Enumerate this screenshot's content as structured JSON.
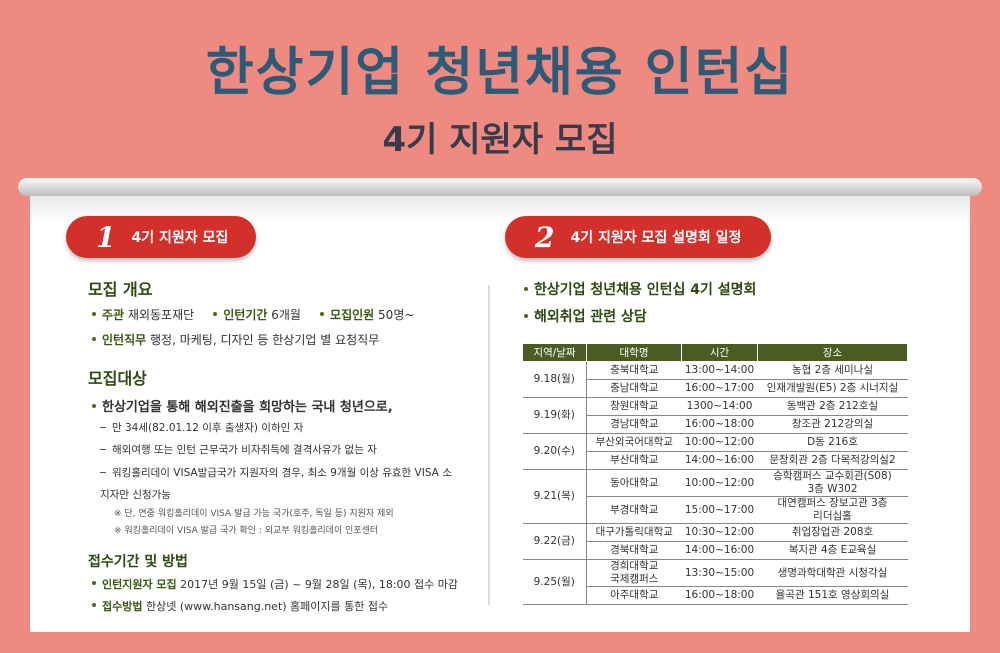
{
  "header": {
    "title": "한상기업 청년채용 인턴십",
    "subtitle": "4기 지원자 모집"
  },
  "left": {
    "badge": "1",
    "heading": "4기 지원자 모집",
    "overview": {
      "heading": "모집 개요",
      "items": [
        {
          "label": "주관",
          "text": "재외동포재단"
        },
        {
          "label": "인턴기간",
          "text": "6개월"
        },
        {
          "label": "모집인원",
          "text": "50명~"
        }
      ],
      "duty": {
        "label": "인턴직무",
        "text": "행정, 마케팅, 디자인 등 한상기업 별 요청직무"
      }
    },
    "target": {
      "heading": "모집대상",
      "lead": "한상기업을 통해 해외진출을 희망하는 국내 청년으로,",
      "conditions": [
        "만 34세(82.01.12 이후 출생자) 이하인 자",
        "해외여행 또는 인턴 근무국가 비자취득에 결격사유가 없는 자",
        "워킹홀리데이 VISA발급국가 지원자의 경우, 최소 9개월 이상 유효한 VISA 소지자만 신청가능"
      ],
      "notes": [
        "※ 단, 연중 워킹홀리데이 VISA 발급 가능 국가(호주, 독일 등) 지원자 제외",
        "※ 워킹홀리데이 VISA 발급 국가 확인 : 외교부 워킹홀리데이 인포센터"
      ]
    },
    "apply": {
      "heading": "접수기간 및 방법",
      "items": [
        {
          "label": "인턴지원자 모집",
          "text": "2017년 9월 15일 (금) ~ 9월 28일 (목), 18:00 접수 마감"
        },
        {
          "label": "접수방법",
          "text": "한상넷 (www.hansang.net) 홈페이지를 통한 접수"
        }
      ]
    }
  },
  "right": {
    "badge": "2",
    "heading": "4기 지원자 모집 설명회 일정",
    "bullets": [
      "한상기업 청년채용 인턴십 4기 설명회",
      "해외취업 관련 상담"
    ],
    "table": {
      "header": [
        "지역/날짜",
        "대학명",
        "시간",
        "장소"
      ],
      "groups": [
        {
          "date": "9.18(월)",
          "rows": [
            [
              "충북대학교",
              "13:00~14:00",
              "농협 2층 세미나실"
            ],
            [
              "충남대학교",
              "16:00~17:00",
              "인재개발원(E5) 2층 시너지실"
            ]
          ]
        },
        {
          "date": "9.19(화)",
          "rows": [
            [
              "창원대학교",
              "1300~14:00",
              "동백관 2층 212호실"
            ],
            [
              "경남대학교",
              "16:00~18:00",
              "창조관 212강의실"
            ]
          ]
        },
        {
          "date": "9.20(수)",
          "rows": [
            [
              "부산외국어대학교",
              "10:00~12:00",
              "D동 216호"
            ],
            [
              "부산대학교",
              "14:00~16:00",
              "문창회관 2층 다목적강의실2"
            ]
          ]
        },
        {
          "date": "9.21(목)",
          "rows": [
            [
              "동아대학교",
              "10:00~12:00",
              "승학캠퍼스 교수회관(S08)\n3층 W302"
            ],
            [
              "부경대학교",
              "15:00~17:00",
              "대연캠퍼스 장보고관 3층\n리더십홀"
            ]
          ]
        },
        {
          "date": "9.22(금)",
          "rows": [
            [
              "대구가톨릭대학교",
              "10:30~12:00",
              "취업장업관 208호"
            ],
            [
              "경북대학교",
              "14:00~16:00",
              "복지관 4층 E교육실"
            ]
          ]
        },
        {
          "date": "9.25(월)",
          "rows": [
            [
              "경희대학교\n국제캠퍼스",
              "13:30~15:00",
              "생명과학대학관 시청각실"
            ],
            [
              "아주대학교",
              "16:00~18:00",
              "율곡관 151호 영상회의실"
            ]
          ]
        }
      ]
    }
  }
}
